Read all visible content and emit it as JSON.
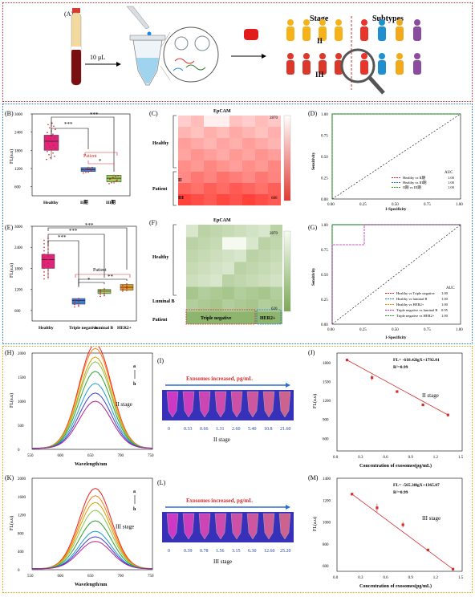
{
  "panelA": {
    "label": "(A)",
    "volume": "10 μL",
    "stage_title": "Stage",
    "subtypes_title": "Subtypes",
    "stage_marks": [
      "II",
      "III"
    ]
  },
  "panelB": {
    "label": "(B)",
    "ylabel": "FL(a.u)",
    "yticks": [
      "3000",
      "2400",
      "1800",
      "1200",
      "600"
    ],
    "categories": [
      "Healthy",
      "II期",
      "III期"
    ],
    "sig": [
      "***",
      "***",
      "*"
    ],
    "patient": "Patient"
  },
  "panelC": {
    "label": "(C)",
    "title": "EpCAM",
    "rows": [
      "Healthy",
      "II",
      "Patient",
      "III"
    ],
    "scale_max": "2870",
    "scale_min": "680"
  },
  "panelD": {
    "label": "(D)",
    "ylabel": "Sensitivity",
    "xlabel": "1-Specificity",
    "ticks": [
      "0.00",
      "0.25",
      "0.50",
      "0.75",
      "1.00"
    ],
    "legend_title": "AUC",
    "legend": [
      {
        "name": "Healthy vs II期",
        "auc": "1.00",
        "color": "#d22"
      },
      {
        "name": "Healthy vs III期",
        "auc": "1.00",
        "color": "#2a6ed6"
      },
      {
        "name": "II期 vs III期",
        "auc": "1.00",
        "color": "#2a9a2a"
      }
    ]
  },
  "panelE": {
    "label": "(E)",
    "ylabel": "FL(a.u)",
    "yticks": [
      "3000",
      "2400",
      "1800",
      "1200",
      "600"
    ],
    "categories": [
      "Healthy",
      "Triple negative",
      "luminal B",
      "HER2+"
    ],
    "sig": [
      "***",
      "***",
      "***",
      "*",
      "**"
    ],
    "patient": "Patient"
  },
  "panelF": {
    "label": "(F)",
    "title": "EpCAM",
    "rows": [
      "Healthy",
      "Luminal B",
      "Patient"
    ],
    "boxes": [
      "Triple negative",
      "HER2+"
    ],
    "scale_max": "2870",
    "scale_min": "620"
  },
  "panelG": {
    "label": "(G)",
    "ylabel": "Sensitivity",
    "xlabel": "1-Specificity",
    "ticks": [
      "0.00",
      "0.25",
      "0.50",
      "0.75",
      "1.00"
    ],
    "legend_title": "AUC",
    "legend": [
      {
        "name": "Healthy vs Triple negative",
        "auc": "1.00",
        "color": "#d22"
      },
      {
        "name": "Healthy vs luminal B",
        "auc": "1.00",
        "color": "#2a6ed6"
      },
      {
        "name": "Healthy vs HER2+",
        "auc": "1.00",
        "color": "#e08a10"
      },
      {
        "name": "Triple negative vs luminal B",
        "auc": "0.95",
        "color": "#c020c0"
      },
      {
        "name": "Triple negative vs HER2+",
        "auc": "1.00",
        "color": "#2a9a2a"
      }
    ]
  },
  "panelH": {
    "label": "(H)",
    "ylabel": "FL(a.u)",
    "xlabel": "Wavelength/nm",
    "yticks": [
      "2000",
      "1500",
      "1000",
      "500",
      "0"
    ],
    "xticks": [
      "550",
      "600",
      "650",
      "700",
      "750"
    ],
    "stage": "II stage",
    "series_marks": [
      "a",
      "h"
    ]
  },
  "panelI": {
    "label": "(I)",
    "title": "Exosomes increased, pg/mL",
    "values": [
      "0",
      "0.33",
      "0.66",
      "1.31",
      "2.60",
      "5.40",
      "10.8",
      "21.60"
    ],
    "stage": "II stage"
  },
  "panelJ": {
    "label": "(J)",
    "equation": "FL= -618.42lgX+1792.01",
    "r2": "R²=0.99",
    "stage": "II stage",
    "ylabel": "FL(a.u)",
    "xlabel": "Concentration of exosomes(pg/mL)",
    "yticks": [
      "1800",
      "1500",
      "1200",
      "900",
      "600"
    ],
    "xticks": [
      "0.0",
      "0.3",
      "0.6",
      "0.9",
      "1.2",
      "1.5"
    ]
  },
  "panelK": {
    "label": "(K)",
    "ylabel": "FL(a.u)",
    "xlabel": "Wavelength/nm",
    "yticks": [
      "2000",
      "1600",
      "1200",
      "800",
      "400",
      "0"
    ],
    "xticks": [
      "550",
      "600",
      "650",
      "700",
      "750"
    ],
    "stage": "III stage",
    "series_marks": [
      "a",
      "h"
    ]
  },
  "panelL": {
    "label": "(L)",
    "title": "Exosomes increased, pg/mL",
    "values": [
      "0",
      "0.39",
      "0.78",
      "1.56",
      "3.15",
      "6.30",
      "12.60",
      "25.20"
    ],
    "stage": "III stage"
  },
  "panelM": {
    "label": "(M)",
    "equation": "FL= -565.38lgX+1365.07",
    "r2": "R²=0.99",
    "stage": "III stage",
    "ylabel": "FL(a.u)",
    "xlabel": "Concentration of exosomes(pg/mL)",
    "yticks": [
      "1400",
      "1200",
      "1000",
      "800",
      "600"
    ],
    "xticks": [
      "0.0",
      "0.3",
      "0.6",
      "0.9",
      "1.2",
      "1.5"
    ]
  },
  "chart_data": [
    {
      "type": "line",
      "title": "",
      "xlabel": "Wavelength/nm",
      "ylabel": "FL(a.u)",
      "xlim": [
        550,
        750
      ],
      "ylim": [
        0,
        2000
      ],
      "series": [
        {
          "name": "a",
          "peak": 2170
        },
        {
          "name": "",
          "peak": 2080
        },
        {
          "name": "",
          "peak": 1900
        },
        {
          "name": "",
          "peak": 1800
        },
        {
          "name": "",
          "peak": 1600
        },
        {
          "name": "",
          "peak": 1350
        },
        {
          "name": "",
          "peak": 1150
        },
        {
          "name": "h",
          "peak": 980
        }
      ],
      "colors": [
        "#e8221f",
        "#ff7f0e",
        "#d4a000",
        "#8bc34a",
        "#2ca02c",
        "#1f9bd6",
        "#3b3fd0",
        "#b41f8e"
      ]
    },
    {
      "type": "scatter",
      "title": "",
      "xlabel": "Concentration of exosomes(pg/mL)",
      "ylabel": "FL(a.u)",
      "xlim": [
        0,
        1.5
      ],
      "ylim": [
        400,
        1950
      ],
      "x": [
        0.12,
        0.42,
        0.72,
        1.03,
        1.33
      ],
      "y": [
        1840,
        1560,
        1340,
        1130,
        970
      ],
      "err": [
        10,
        40,
        15,
        10,
        10
      ]
    },
    {
      "type": "line",
      "title": "",
      "xlabel": "Wavelength/nm",
      "ylabel": "FL(a.u)",
      "xlim": [
        550,
        750
      ],
      "ylim": [
        0,
        2000
      ],
      "series": [
        {
          "name": "a",
          "peak": 1760
        },
        {
          "name": "",
          "peak": 1600
        },
        {
          "name": "",
          "peak": 1450
        },
        {
          "name": "",
          "peak": 1280
        },
        {
          "name": "",
          "peak": 1050
        },
        {
          "name": "",
          "peak": 820
        },
        {
          "name": "",
          "peak": 700
        },
        {
          "name": "h",
          "peak": 600
        }
      ],
      "colors": [
        "#e8221f",
        "#ff7f0e",
        "#d4a000",
        "#8bc34a",
        "#2ca02c",
        "#1f9bd6",
        "#3b3fd0",
        "#b41f8e"
      ]
    },
    {
      "type": "scatter",
      "title": "",
      "xlabel": "Concentration of exosomes(pg/mL)",
      "ylabel": "FL(a.u)",
      "xlim": [
        0,
        1.5
      ],
      "ylim": [
        550,
        1400
      ],
      "x": [
        0.18,
        0.48,
        0.79,
        1.09,
        1.39
      ],
      "y": [
        1255,
        1130,
        975,
        745,
        570
      ],
      "err": [
        5,
        40,
        25,
        5,
        5
      ]
    }
  ]
}
